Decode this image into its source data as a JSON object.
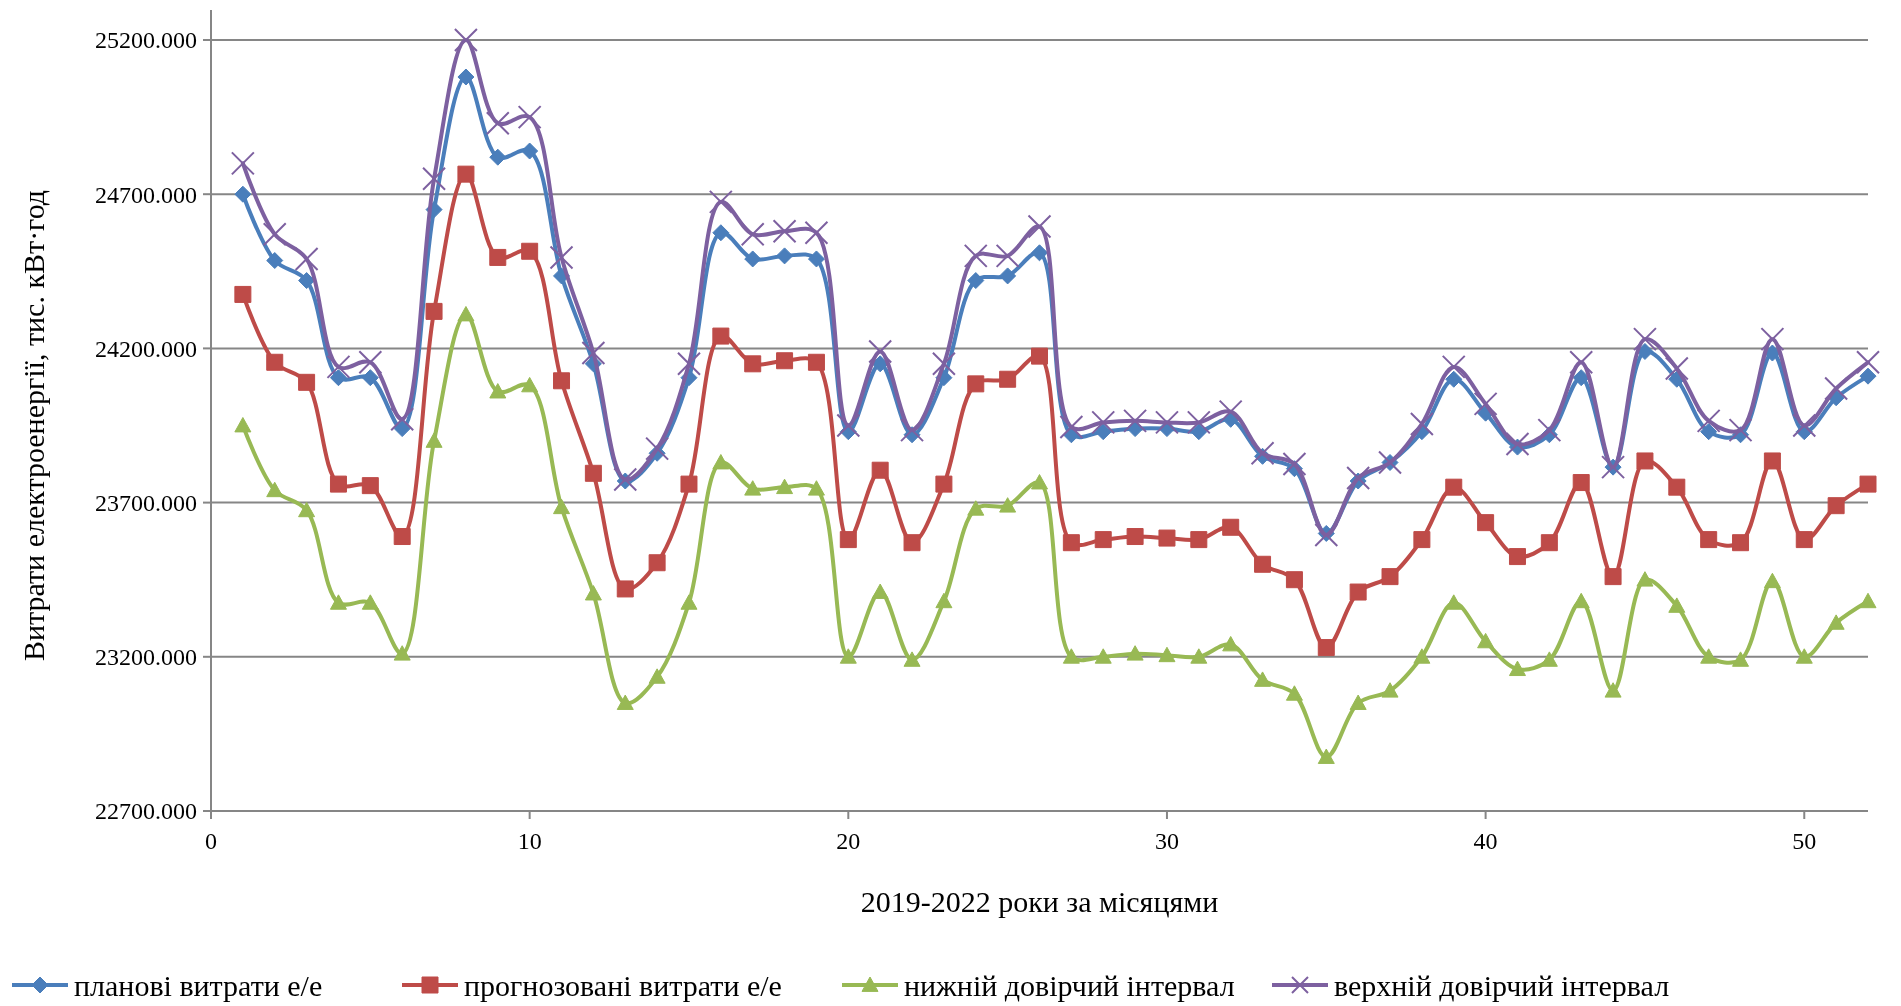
{
  "chart_data": {
    "type": "line",
    "xlabel": "2019-2022 роки за місяцями",
    "ylabel": "Витрати електроенергії, тис. кВт·год",
    "x": [
      1,
      2,
      3,
      4,
      5,
      6,
      7,
      8,
      9,
      10,
      11,
      12,
      13,
      14,
      15,
      16,
      17,
      18,
      19,
      20,
      21,
      22,
      23,
      24,
      25,
      26,
      27,
      28,
      29,
      30,
      31,
      32,
      33,
      34,
      35,
      36,
      37,
      38,
      39,
      40,
      41,
      42,
      43,
      44,
      45,
      46,
      47,
      48,
      49,
      50,
      51,
      52
    ],
    "xlim": [
      0,
      52
    ],
    "xticks": [
      0,
      10,
      20,
      30,
      40,
      50
    ],
    "ylim": [
      22700,
      25200
    ],
    "yticks": [
      {
        "value": 22700,
        "label": "22700.000"
      },
      {
        "value": 23200,
        "label": "23200.000"
      },
      {
        "value": 23700,
        "label": "23700.000"
      },
      {
        "value": 24200,
        "label": "24200.000"
      },
      {
        "value": 24700,
        "label": "24700.000"
      },
      {
        "value": 25200,
        "label": "25200.000"
      }
    ],
    "grid": "y",
    "legend": "bottom",
    "line_style": "solid",
    "series": [
      {
        "name": "планові витрати е/е",
        "color": "#4a7ebb",
        "marker": "diamond",
        "values": [
          24700,
          24485,
          24420,
          24105,
          24105,
          23940,
          24650,
          25080,
          24820,
          24840,
          24435,
          24150,
          23770,
          23860,
          24105,
          24575,
          24490,
          24500,
          24490,
          23930,
          24150,
          23920,
          24105,
          24420,
          24435,
          24510,
          23920,
          23930,
          23940,
          23940,
          23930,
          23970,
          23850,
          23810,
          23600,
          23770,
          23830,
          23930,
          24100,
          23990,
          23880,
          23920,
          24105,
          23815,
          24190,
          24100,
          23930,
          23920,
          24185,
          23930,
          24040,
          24110
        ]
      },
      {
        "name": "прогнозовані витрати е/е",
        "color": "#be4b48",
        "marker": "square",
        "values": [
          24375,
          24155,
          24090,
          23760,
          23755,
          23590,
          24320,
          24765,
          24495,
          24515,
          24095,
          23795,
          23420,
          23505,
          23760,
          24240,
          24150,
          24160,
          24155,
          23580,
          23805,
          23570,
          23760,
          24085,
          24100,
          24175,
          23570,
          23580,
          23590,
          23585,
          23580,
          23620,
          23500,
          23450,
          23230,
          23410,
          23460,
          23580,
          23750,
          23635,
          23525,
          23570,
          23765,
          23460,
          23835,
          23750,
          23580,
          23570,
          23835,
          23580,
          23690,
          23760
        ]
      },
      {
        "name": "нижній довірчий інтервал",
        "color": "#98b954",
        "marker": "triangle",
        "values": [
          23950,
          23740,
          23675,
          23375,
          23375,
          23210,
          23900,
          24310,
          24060,
          24080,
          23685,
          23405,
          23050,
          23135,
          23375,
          23830,
          23745,
          23750,
          23745,
          23200,
          23410,
          23190,
          23380,
          23680,
          23690,
          23765,
          23200,
          23200,
          23210,
          23205,
          23200,
          23240,
          23125,
          23080,
          22875,
          23050,
          23090,
          23200,
          23375,
          23250,
          23160,
          23190,
          23380,
          23090,
          23450,
          23365,
          23200,
          23190,
          23445,
          23200,
          23310,
          23380
        ]
      },
      {
        "name": "верхній довірчий інтервал",
        "color": "#7d60a0",
        "marker": "cross",
        "values": [
          24800,
          24570,
          24490,
          24140,
          24155,
          23970,
          24750,
          25200,
          24930,
          24950,
          24495,
          24185,
          23775,
          23875,
          24150,
          24675,
          24570,
          24580,
          24575,
          23950,
          24190,
          23935,
          24150,
          24500,
          24500,
          24595,
          23945,
          23960,
          23965,
          23960,
          23960,
          23995,
          23860,
          23825,
          23595,
          23780,
          23830,
          23955,
          24140,
          24020,
          23890,
          23935,
          24155,
          23815,
          24230,
          24135,
          23965,
          23935,
          24230,
          23950,
          24070,
          24155
        ]
      }
    ]
  }
}
